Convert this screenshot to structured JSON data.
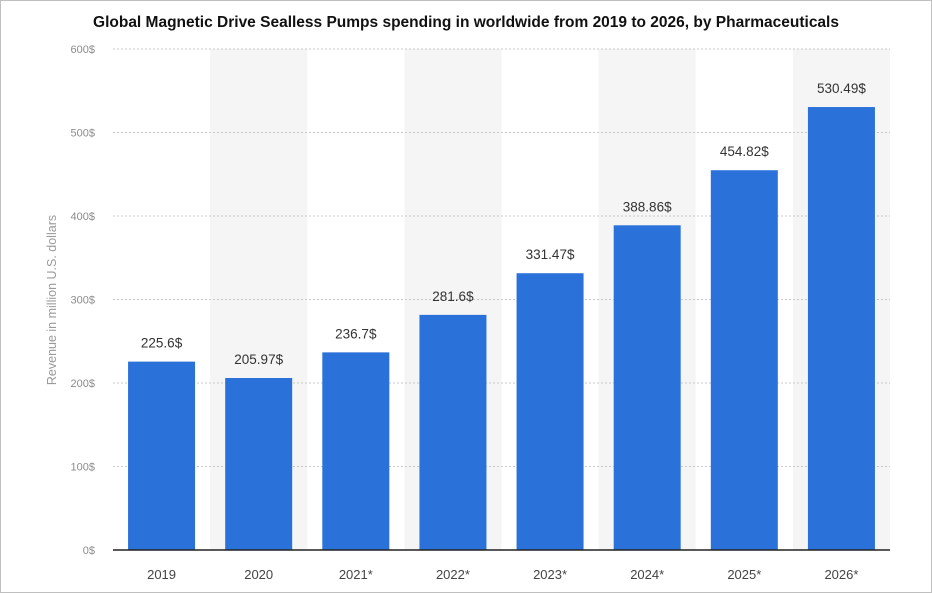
{
  "chart_data": {
    "type": "bar",
    "title": "Global Magnetic Drive Sealless Pumps spending in worldwide from 2019 to 2026, by Pharmaceuticals",
    "xlabel": "",
    "ylabel": "Revenue in million U.S. dollars",
    "categories": [
      "2019",
      "2020",
      "2021*",
      "2022*",
      "2023*",
      "2024*",
      "2025*",
      "2026*"
    ],
    "values": [
      225.6,
      205.97,
      236.7,
      281.6,
      331.47,
      388.86,
      454.82,
      530.49
    ],
    "value_labels": [
      "225.6$",
      "205.97$",
      "236.7$",
      "281.6$",
      "331.47$",
      "388.86$",
      "454.82$",
      "530.49$"
    ],
    "ylim": [
      0,
      600
    ],
    "yticks": [
      0,
      100,
      200,
      300,
      400,
      500,
      600
    ],
    "ytick_labels": [
      "0$",
      "100$",
      "200$",
      "300$",
      "400$",
      "500$",
      "600$"
    ],
    "grid": true,
    "legend": "none",
    "colors": {
      "bar": "#2a71d9",
      "band": "#f5f5f5",
      "grid": "#c8c8c8",
      "axis": "#222222"
    }
  }
}
